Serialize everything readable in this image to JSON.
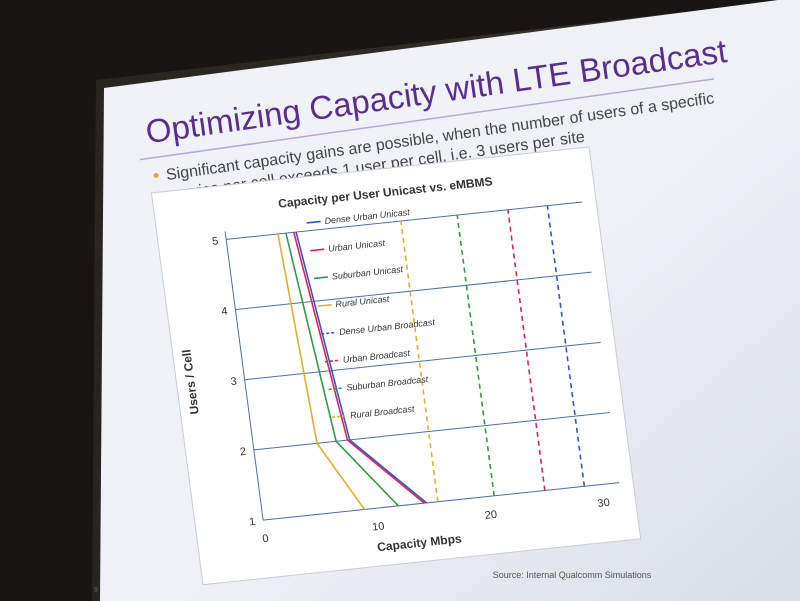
{
  "slide": {
    "title": "Optimizing Capacity with LTE Broadcast",
    "bullet_line1": "Significant capacity gains are possible, when the number of users of a specific",
    "bullet_line2": "service per cell exceeds 1 user per cell, i.e. 3 users per site",
    "source": "Source:  Internal Qualcomm Simulations",
    "page_number": "9"
  },
  "colors": {
    "title": "#5b2d8e",
    "dense_urban": "#3355cc",
    "urban": "#dd2255",
    "suburban": "#339944",
    "rural": "#ddb030"
  },
  "chart_data": {
    "type": "line",
    "title": "Capacity per User Unicast vs. eMBMS",
    "xlabel": "Capacity Mbps",
    "ylabel": "Users / Cell",
    "xlim": [
      0,
      30
    ],
    "ylim": [
      1,
      5
    ],
    "x_ticks": [
      "0",
      "10",
      "20",
      "30"
    ],
    "y_ticks": [
      "1",
      "2",
      "3",
      "4",
      "5"
    ],
    "legend_position": "top-center",
    "grid": "horizontal",
    "series": [
      {
        "name": "Dense Urban Unicast",
        "style": "solid",
        "color": "#3355cc",
        "points": [
          [
            14.5,
            1
          ],
          [
            8.5,
            2
          ],
          [
            6.2,
            5
          ]
        ]
      },
      {
        "name": "Urban Unicast",
        "style": "solid",
        "color": "#dd2255",
        "points": [
          [
            14.3,
            1
          ],
          [
            8.3,
            2
          ],
          [
            6.0,
            5
          ]
        ]
      },
      {
        "name": "Suburban Unicast",
        "style": "solid",
        "color": "#339944",
        "points": [
          [
            12.0,
            1
          ],
          [
            7.3,
            2
          ],
          [
            5.3,
            5
          ]
        ]
      },
      {
        "name": "Rural Unicast",
        "style": "solid",
        "color": "#ddb030",
        "points": [
          [
            9.0,
            1
          ],
          [
            5.6,
            2
          ],
          [
            4.6,
            5
          ]
        ]
      },
      {
        "name": "Dense Urban Broadcast",
        "style": "dashed",
        "color": "#3355cc",
        "points": [
          [
            28.5,
            1
          ],
          [
            28.5,
            5
          ]
        ]
      },
      {
        "name": "Urban Broadcast",
        "style": "dashed",
        "color": "#dd2255",
        "points": [
          [
            25.0,
            1
          ],
          [
            25.0,
            5
          ]
        ]
      },
      {
        "name": "Suburban Broadcast",
        "style": "dashed",
        "color": "#339944",
        "points": [
          [
            20.5,
            1
          ],
          [
            20.5,
            5
          ]
        ]
      },
      {
        "name": "Rural Broadcast",
        "style": "dashed",
        "color": "#ddb030",
        "points": [
          [
            15.5,
            1
          ],
          [
            15.5,
            5
          ]
        ]
      }
    ]
  }
}
